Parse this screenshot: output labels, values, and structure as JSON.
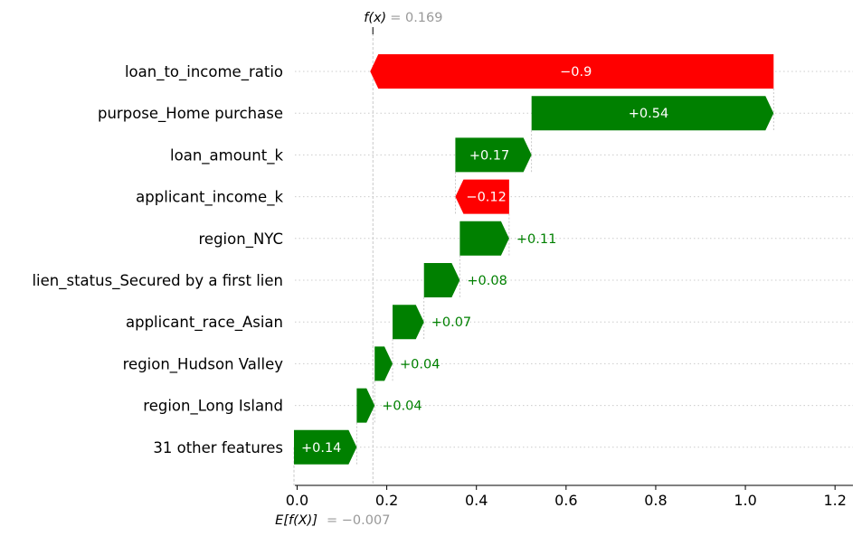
{
  "chart_data": {
    "type": "waterfall",
    "fx_label": "f(x)",
    "fx_value_text": "= 0.169",
    "fx": 0.169,
    "base_label": "E[f(X)]",
    "base_value_text": "= −0.007",
    "base": -0.007,
    "xlim": [
      -0.005,
      1.24
    ],
    "x_ticks": [
      0.0,
      0.2,
      0.4,
      0.6,
      0.8,
      1.0,
      1.2
    ],
    "x_tick_labels": [
      "0.0",
      "0.2",
      "0.4",
      "0.6",
      "0.8",
      "1.0",
      "1.2"
    ],
    "colors": {
      "positive": "#008000",
      "negative": "#ff0000",
      "grey": "#999999"
    },
    "rows": [
      {
        "feature": "loan_to_income_ratio",
        "value": -0.9,
        "label": "−0.9"
      },
      {
        "feature": "purpose_Home purchase",
        "value": 0.54,
        "label": "+0.54"
      },
      {
        "feature": "loan_amount_k",
        "value": 0.17,
        "label": "+0.17"
      },
      {
        "feature": "applicant_income_k",
        "value": -0.12,
        "label": "−0.12"
      },
      {
        "feature": "region_NYC",
        "value": 0.11,
        "label": "+0.11"
      },
      {
        "feature": "lien_status_Secured by a first lien",
        "value": 0.08,
        "label": "+0.08"
      },
      {
        "feature": "applicant_race_Asian",
        "value": 0.07,
        "label": "+0.07"
      },
      {
        "feature": "region_Hudson Valley",
        "value": 0.04,
        "label": "+0.04"
      },
      {
        "feature": "region_Long Island",
        "value": 0.04,
        "label": "+0.04"
      },
      {
        "feature": "31 other features",
        "value": 0.14,
        "label": "+0.14"
      }
    ]
  }
}
